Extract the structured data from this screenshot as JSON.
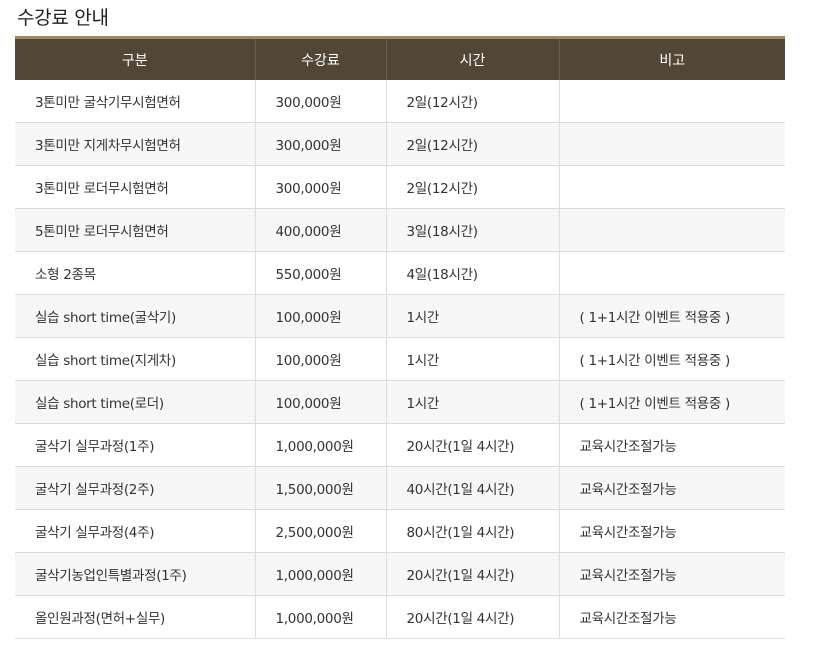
{
  "title": "수강료 안내",
  "table": {
    "headers": [
      "구분",
      "수강료",
      "시간",
      "비고"
    ],
    "rows": [
      {
        "category": "3톤미만 굴삭기무시험면허",
        "fee": "300,000원",
        "time": "2일(12시간)",
        "note": ""
      },
      {
        "category": "3톤미만 지게차무시험면허",
        "fee": "300,000원",
        "time": "2일(12시간)",
        "note": ""
      },
      {
        "category": "3톤미만 로더무시험면허",
        "fee": "300,000원",
        "time": "2일(12시간)",
        "note": ""
      },
      {
        "category": "5톤미만 로더무시험면허",
        "fee": "400,000원",
        "time": "3일(18시간)",
        "note": ""
      },
      {
        "category": "소형 2종목",
        "fee": "550,000원",
        "time": "4일(18시간)",
        "note": ""
      },
      {
        "category": "실습 short time(굴삭기)",
        "fee": "100,000원",
        "time": "1시간",
        "note": "( 1+1시간 이벤트 적용중 )"
      },
      {
        "category": "실습 short time(지게차)",
        "fee": "100,000원",
        "time": "1시간",
        "note": "( 1+1시간 이벤트 적용중 )"
      },
      {
        "category": "실습 short time(로더)",
        "fee": "100,000원",
        "time": "1시간",
        "note": "( 1+1시간 이벤트 적용중 )"
      },
      {
        "category": "굴삭기 실무과정(1주)",
        "fee": "1,000,000원",
        "time": "20시간(1일 4시간)",
        "note": "교육시간조절가능"
      },
      {
        "category": "굴삭기 실무과정(2주)",
        "fee": "1,500,000원",
        "time": "40시간(1일 4시간)",
        "note": "교육시간조절가능"
      },
      {
        "category": "굴삭기 실무과정(4주)",
        "fee": "2,500,000원",
        "time": "80시간(1일 4시간)",
        "note": "교육시간조절가능"
      },
      {
        "category": "굴삭기농업인특별과정(1주)",
        "fee": "1,000,000원",
        "time": "20시간(1일 4시간)",
        "note": "교육시간조절가능"
      },
      {
        "category": "올인원과정(면허+실무)",
        "fee": "1,000,000원",
        "time": "20시간(1일 4시간)",
        "note": "교육시간조절가능"
      }
    ]
  },
  "colors": {
    "header_bg": "#524637",
    "header_accent": "#a08a5a",
    "alt_row_bg": "#f7f7f7"
  }
}
